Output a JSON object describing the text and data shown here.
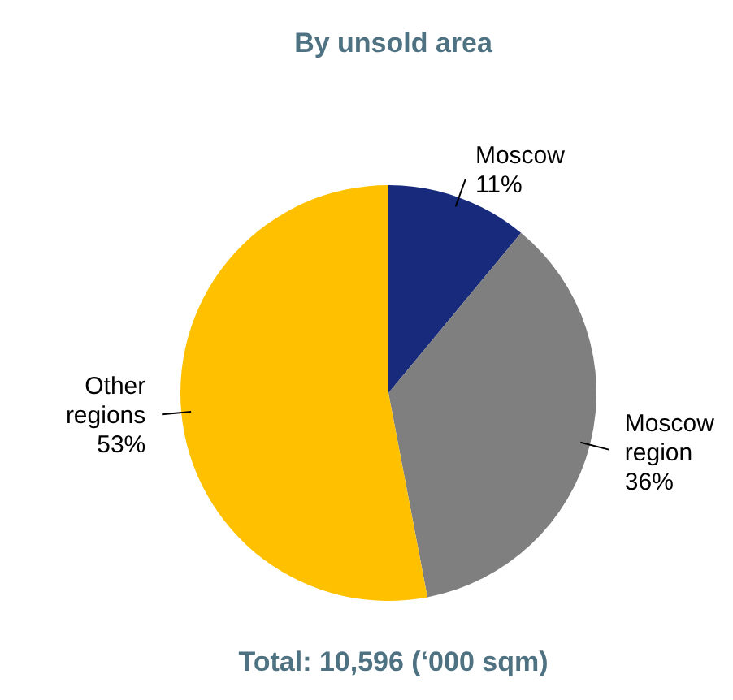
{
  "chart_data": {
    "type": "pie",
    "title": "By unsold area",
    "categories": [
      "Moscow",
      "Moscow region",
      "Other regions"
    ],
    "values": [
      11,
      36,
      53
    ],
    "colors": [
      "#172a7c",
      "#7f7f7f",
      "#ffc000"
    ],
    "value_labels": [
      "11%",
      "36%",
      "53%"
    ],
    "annotations": [
      "Total: 10,596  (‘000 sqm)"
    ]
  }
}
